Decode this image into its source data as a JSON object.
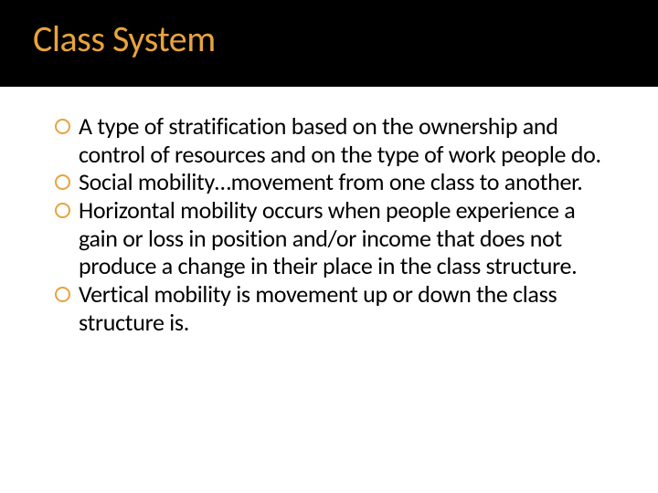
{
  "slide": {
    "title": "Class System",
    "title_color": "#e8a33d",
    "title_bg": "#000000",
    "body_bg": "#ffffff",
    "bullet_ring_color": "#e8a33d",
    "body_text_color": "#000000",
    "title_fontsize": 40,
    "body_fontsize": 26,
    "bullets": [
      "A type of stratification based on the ownership and control of resources and on the type of work people do.",
      "Social mobility…movement from one class to another.",
      "Horizontal mobility occurs when people experience a gain or loss in position and/or income that does not produce a change in their place in the class structure.",
      "Vertical mobility is movement up or down the class structure is."
    ]
  }
}
